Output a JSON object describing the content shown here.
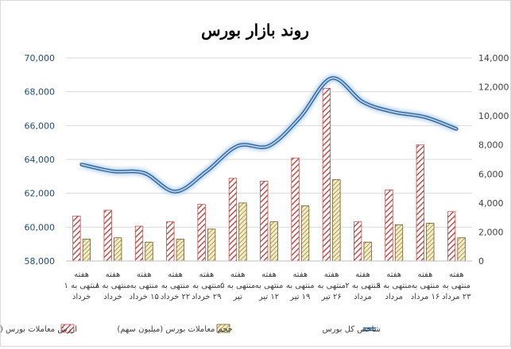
{
  "chart_data": {
    "type": "bar+line",
    "title": "روند بازار بورس",
    "categories": [
      [
        "هفته",
        "منتهی به ۱",
        "خرداد"
      ],
      [
        "هفته",
        "منتهی به ۸",
        "خرداد"
      ],
      [
        "هفته",
        "منتهی به",
        "۱۵ خرداد"
      ],
      [
        "هفته",
        "منتهی به",
        "۲۲ خرداد"
      ],
      [
        "هفته",
        "منتهی به",
        "۲۹ خرداد"
      ],
      [
        "هفته",
        "منتهی به ۵",
        "تیر"
      ],
      [
        "هفته",
        "منتهی به",
        "۱۲ تیر"
      ],
      [
        "هفته",
        "منتهی به",
        "۱۹ تیر"
      ],
      [
        "هفته",
        "منتهی به",
        "۲۶ تیر"
      ],
      [
        "هفته",
        "منتهی به ۲",
        "مرداد"
      ],
      [
        "هفته",
        "منتهی به ۹",
        "مرداد"
      ],
      [
        "هفته",
        "منتهی به",
        "۱۶ مرداد"
      ],
      [
        "هفته",
        "منتهی به",
        "۲۳ مرداد"
      ]
    ],
    "left_axis": {
      "ylim": [
        58000,
        70000
      ],
      "ticks": [
        "58,000",
        "60,000",
        "62,000",
        "64,000",
        "66,000",
        "68,000",
        "70,000"
      ],
      "color": "#1f4e79"
    },
    "right_axis": {
      "ylim": [
        0,
        14000
      ],
      "ticks": [
        "0",
        "2,000",
        "4,000",
        "6,000",
        "8,000",
        "10,000",
        "12,000",
        "14,000"
      ]
    },
    "series": [
      {
        "name": "ارزش معاملات بورس (میلیارد ریال)",
        "kind": "bar",
        "axis": "right",
        "pattern": "red-diagonal",
        "color": "#c0504d",
        "values": [
          3100,
          3500,
          2400,
          2700,
          3900,
          5700,
          5500,
          7100,
          11900,
          2700,
          4900,
          8000,
          3400
        ]
      },
      {
        "name": "حجم معاملات بورس (میلیون سهم)",
        "kind": "bar",
        "axis": "right",
        "pattern": "olive-diagonal",
        "color": "#c9b45c",
        "values": [
          1500,
          1600,
          1300,
          1500,
          2200,
          4000,
          2700,
          3800,
          5600,
          1300,
          2500,
          2600,
          1600
        ]
      },
      {
        "name": "شاخص کل بورس",
        "kind": "line",
        "axis": "left",
        "color": "#4f81bd",
        "values": [
          63700,
          63300,
          63200,
          62100,
          63300,
          64800,
          64800,
          66500,
          68800,
          67400,
          66800,
          66500,
          65800
        ]
      }
    ],
    "grid": "horizontal",
    "legend_position": "bottom"
  }
}
